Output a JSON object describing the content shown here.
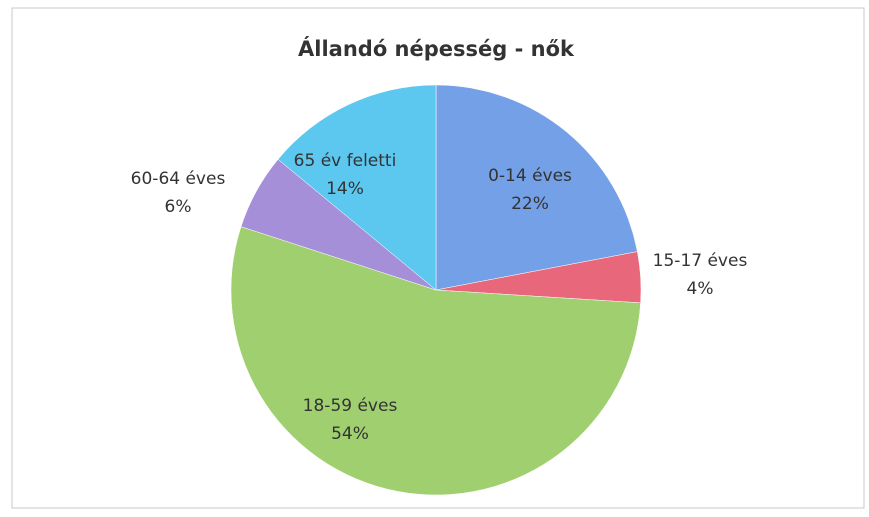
{
  "chart_data": {
    "type": "pie",
    "title": "Állandó népesség - nők",
    "categories": [
      "0-14 éves",
      "15-17 éves",
      "18-59 éves",
      "60-64 éves",
      "65 év feletti"
    ],
    "values": [
      22,
      4,
      54,
      6,
      14
    ],
    "value_labels": [
      "22%",
      "4%",
      "54%",
      "6%",
      "14%"
    ],
    "colors": [
      "#73a0e6",
      "#e9677b",
      "#a0cf70",
      "#a58fd8",
      "#5cc7ef"
    ]
  }
}
